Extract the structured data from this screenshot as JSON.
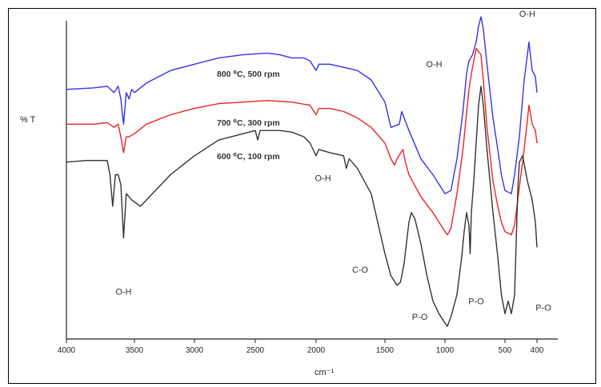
{
  "chart_data": {
    "type": "line",
    "xlabel": "cm⁻¹",
    "ylabel": "% T",
    "x_reversed": true,
    "xlim": [
      4000,
      400
    ],
    "x_ticks": [
      4000,
      3500,
      3000,
      2500,
      2000,
      1500,
      1000,
      500,
      400
    ],
    "x_tick_labels": [
      "4000",
      "3500",
      "3000",
      "2500",
      "2000",
      "1500",
      "1000",
      "500",
      "400"
    ],
    "ylim": [
      0,
      100
    ],
    "grid": false,
    "legend": "none",
    "series": [
      {
        "name": "800 ⁰C, 500 rpm",
        "color": "#3333ee",
        "label_text": "800 ⁰C, 500 rpm",
        "points": [
          [
            4000,
            77
          ],
          [
            3800,
            77.5
          ],
          [
            3700,
            78
          ],
          [
            3650,
            76
          ],
          [
            3620,
            78
          ],
          [
            3600,
            74
          ],
          [
            3580,
            66
          ],
          [
            3560,
            76
          ],
          [
            3540,
            74
          ],
          [
            3520,
            77
          ],
          [
            3500,
            76
          ],
          [
            3400,
            79
          ],
          [
            3200,
            83
          ],
          [
            3000,
            85
          ],
          [
            2800,
            87
          ],
          [
            2600,
            88
          ],
          [
            2400,
            88.5
          ],
          [
            2300,
            88
          ],
          [
            2200,
            87
          ],
          [
            2100,
            87
          ],
          [
            2050,
            86
          ],
          [
            2000,
            83
          ],
          [
            1980,
            85
          ],
          [
            1900,
            85
          ],
          [
            1800,
            84
          ],
          [
            1700,
            83
          ],
          [
            1600,
            80
          ],
          [
            1500,
            73
          ],
          [
            1450,
            65
          ],
          [
            1380,
            66
          ],
          [
            1360,
            70
          ],
          [
            1300,
            64
          ],
          [
            1200,
            55
          ],
          [
            1100,
            50
          ],
          [
            1000,
            44
          ],
          [
            950,
            45
          ],
          [
            900,
            55
          ],
          [
            850,
            70
          ],
          [
            820,
            82
          ],
          [
            800,
            86
          ],
          [
            770,
            88
          ],
          [
            740,
            92
          ],
          [
            720,
            97
          ],
          [
            700,
            100
          ],
          [
            680,
            96
          ],
          [
            650,
            85
          ],
          [
            600,
            68
          ],
          [
            560,
            58
          ],
          [
            530,
            50
          ],
          [
            500,
            45
          ],
          [
            480,
            44
          ],
          [
            470,
            50
          ],
          [
            455,
            62
          ],
          [
            440,
            80
          ],
          [
            425,
            92
          ],
          [
            415,
            83
          ],
          [
            405,
            81
          ],
          [
            400,
            76
          ]
        ]
      },
      {
        "name": "700 ⁰C, 300 rpm",
        "color": "#ee2222",
        "label_text": "700 ⁰C, 300 rpm",
        "points": [
          [
            4000,
            66
          ],
          [
            3800,
            66
          ],
          [
            3700,
            66.5
          ],
          [
            3650,
            65
          ],
          [
            3620,
            66
          ],
          [
            3600,
            62
          ],
          [
            3580,
            57
          ],
          [
            3560,
            62
          ],
          [
            3540,
            62
          ],
          [
            3500,
            63
          ],
          [
            3400,
            66
          ],
          [
            3200,
            69
          ],
          [
            3000,
            71
          ],
          [
            2800,
            72.5
          ],
          [
            2600,
            73
          ],
          [
            2400,
            73.5
          ],
          [
            2200,
            73
          ],
          [
            2050,
            72
          ],
          [
            2000,
            69
          ],
          [
            1980,
            71
          ],
          [
            1900,
            71
          ],
          [
            1800,
            70
          ],
          [
            1700,
            68
          ],
          [
            1600,
            65
          ],
          [
            1500,
            60
          ],
          [
            1450,
            55
          ],
          [
            1420,
            53
          ],
          [
            1400,
            55
          ],
          [
            1350,
            58
          ],
          [
            1330,
            54
          ],
          [
            1300,
            50
          ],
          [
            1200,
            43
          ],
          [
            1100,
            38
          ],
          [
            1000,
            32
          ],
          [
            980,
            31
          ],
          [
            950,
            33
          ],
          [
            900,
            44
          ],
          [
            850,
            58
          ],
          [
            800,
            77
          ],
          [
            780,
            82
          ],
          [
            760,
            86
          ],
          [
            740,
            90
          ],
          [
            720,
            89
          ],
          [
            700,
            88
          ],
          [
            680,
            80
          ],
          [
            650,
            65
          ],
          [
            600,
            48
          ],
          [
            560,
            40
          ],
          [
            530,
            35
          ],
          [
            500,
            32
          ],
          [
            480,
            31
          ],
          [
            470,
            34
          ],
          [
            455,
            46
          ],
          [
            440,
            58
          ],
          [
            425,
            72
          ],
          [
            415,
            66
          ],
          [
            405,
            64
          ],
          [
            400,
            60
          ]
        ]
      },
      {
        "name": "600 ⁰C, 100 rpm",
        "color": "#333333",
        "label_text": "600 ⁰C, 100 rpm",
        "points": [
          [
            4000,
            54
          ],
          [
            3850,
            54.5
          ],
          [
            3700,
            54.5
          ],
          [
            3680,
            50
          ],
          [
            3660,
            40
          ],
          [
            3640,
            50
          ],
          [
            3620,
            50
          ],
          [
            3600,
            47
          ],
          [
            3580,
            30
          ],
          [
            3560,
            44
          ],
          [
            3520,
            42
          ],
          [
            3450,
            40
          ],
          [
            3400,
            42
          ],
          [
            3200,
            50
          ],
          [
            3000,
            56
          ],
          [
            2800,
            61
          ],
          [
            2600,
            63
          ],
          [
            2500,
            64
          ],
          [
            2480,
            61
          ],
          [
            2460,
            64
          ],
          [
            2300,
            64
          ],
          [
            2200,
            63.5
          ],
          [
            2100,
            62
          ],
          [
            2050,
            60
          ],
          [
            2000,
            56
          ],
          [
            1980,
            58
          ],
          [
            1900,
            57
          ],
          [
            1800,
            56
          ],
          [
            1780,
            52
          ],
          [
            1760,
            55
          ],
          [
            1700,
            52
          ],
          [
            1600,
            44
          ],
          [
            1500,
            25
          ],
          [
            1450,
            18
          ],
          [
            1400,
            15
          ],
          [
            1370,
            16
          ],
          [
            1340,
            22
          ],
          [
            1300,
            35
          ],
          [
            1280,
            38
          ],
          [
            1250,
            36
          ],
          [
            1200,
            28
          ],
          [
            1150,
            18
          ],
          [
            1100,
            10
          ],
          [
            1050,
            6
          ],
          [
            1000,
            3
          ],
          [
            980,
            2
          ],
          [
            950,
            5
          ],
          [
            900,
            12
          ],
          [
            880,
            18
          ],
          [
            860,
            24
          ],
          [
            840,
            32
          ],
          [
            820,
            38
          ],
          [
            800,
            34
          ],
          [
            790,
            25
          ],
          [
            780,
            38
          ],
          [
            760,
            48
          ],
          [
            740,
            60
          ],
          [
            720,
            72
          ],
          [
            700,
            78
          ],
          [
            680,
            72
          ],
          [
            650,
            58
          ],
          [
            600,
            38
          ],
          [
            560,
            24
          ],
          [
            530,
            12
          ],
          [
            510,
            8
          ],
          [
            500,
            6
          ],
          [
            490,
            10
          ],
          [
            480,
            6
          ],
          [
            470,
            12
          ],
          [
            460,
            45
          ],
          [
            455,
            54
          ],
          [
            445,
            56
          ],
          [
            430,
            48
          ],
          [
            415,
            42
          ],
          [
            405,
            35
          ],
          [
            400,
            27
          ]
        ]
      }
    ],
    "annotations": [
      {
        "text": "O-H",
        "x": 3580,
        "y": 12
      },
      {
        "text": "O-H",
        "x": 1950,
        "y": 48
      },
      {
        "text": "C-O",
        "x": 1680,
        "y": 19
      },
      {
        "text": "P-O",
        "x": 1210,
        "y": 4
      },
      {
        "text": "O-H",
        "x": 1090,
        "y": 84
      },
      {
        "text": "P-O",
        "x": 740,
        "y": 9
      },
      {
        "text": "O-H",
        "x": 430,
        "y": 100
      },
      {
        "text": "P-O",
        "x": 380,
        "y": 7
      }
    ]
  }
}
